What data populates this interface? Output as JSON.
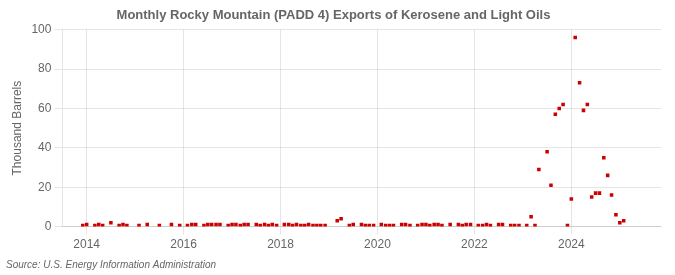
{
  "chart_data": {
    "type": "scatter",
    "title": "Monthly Rocky Mountain (PADD 4) Exports of Kerosene and Light Oils",
    "ylabel": "Thousand Barrels",
    "source": "Source: U.S. Energy Information Administration",
    "color": "#cc0000",
    "marker": "square",
    "grid": true,
    "xlim": [
      2013.5,
      2025.85
    ],
    "xticks": [
      2014,
      2016,
      2018,
      2020,
      2022,
      2024
    ],
    "ylim": [
      0,
      100
    ],
    "yticks": [
      0,
      20,
      40,
      60,
      80,
      100
    ],
    "x": [
      2013.92,
      2014.0,
      2014.17,
      2014.25,
      2014.33,
      2014.5,
      2014.67,
      2014.75,
      2014.83,
      2015.08,
      2015.25,
      2015.5,
      2015.75,
      2015.92,
      2016.08,
      2016.17,
      2016.25,
      2016.42,
      2016.5,
      2016.58,
      2016.67,
      2016.75,
      2016.92,
      2017.0,
      2017.08,
      2017.17,
      2017.25,
      2017.33,
      2017.5,
      2017.58,
      2017.67,
      2017.75,
      2017.83,
      2017.92,
      2018.08,
      2018.17,
      2018.25,
      2018.33,
      2018.42,
      2018.5,
      2018.58,
      2018.67,
      2018.75,
      2018.83,
      2018.92,
      2019.17,
      2019.25,
      2019.42,
      2019.5,
      2019.67,
      2019.75,
      2019.83,
      2019.92,
      2020.08,
      2020.17,
      2020.25,
      2020.33,
      2020.5,
      2020.58,
      2020.67,
      2020.83,
      2020.92,
      2021.0,
      2021.08,
      2021.17,
      2021.25,
      2021.33,
      2021.5,
      2021.67,
      2021.75,
      2021.83,
      2021.92,
      2022.08,
      2022.17,
      2022.25,
      2022.33,
      2022.5,
      2022.58,
      2022.75,
      2022.83,
      2022.92,
      2023.08,
      2023.17,
      2023.25,
      2023.33,
      2023.5,
      2023.58,
      2023.67,
      2023.75,
      2023.83,
      2023.92,
      2024.0,
      2024.08,
      2024.17,
      2024.25,
      2024.33,
      2024.42,
      2024.5,
      2024.58,
      2024.67,
      2024.75,
      2024.83,
      2024.92,
      2025.0,
      2025.08
    ],
    "values": [
      0.5,
      1,
      0.5,
      1,
      0.5,
      2,
      0.5,
      1,
      0.5,
      0.5,
      1,
      0.5,
      1,
      0.5,
      0.5,
      1,
      1,
      0.5,
      1,
      1,
      1,
      1,
      0.5,
      1,
      1,
      0.5,
      1,
      1,
      1,
      0.5,
      1,
      0.5,
      1,
      0.5,
      1,
      1,
      0.5,
      1,
      0.5,
      0.5,
      1,
      0.5,
      0.5,
      0.5,
      0.5,
      3,
      4,
      0.5,
      1,
      1,
      0.5,
      0.5,
      0.5,
      1,
      0.5,
      0.5,
      0.5,
      1,
      1,
      0.5,
      0.5,
      1,
      1,
      0.5,
      1,
      1,
      0.5,
      1,
      1,
      0.5,
      1,
      1,
      0.5,
      0.5,
      1,
      0.5,
      1,
      1,
      0.5,
      0.5,
      0.5,
      0.5,
      5,
      0.5,
      29,
      38,
      21,
      57,
      60,
      62,
      0.5,
      14,
      96,
      73,
      59,
      62,
      15,
      17,
      17,
      35,
      26,
      16,
      6,
      2,
      3
    ]
  }
}
